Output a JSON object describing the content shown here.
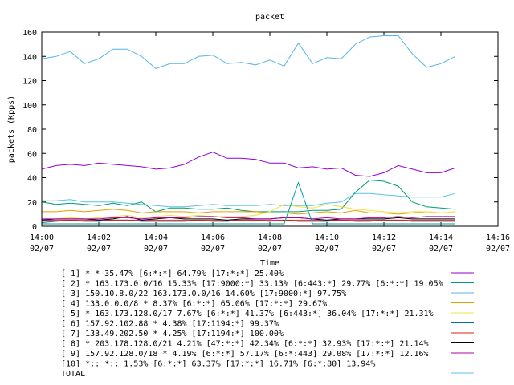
{
  "chart_data": {
    "type": "line",
    "title": "packet",
    "xlabel": "Time",
    "ylabel": "packets (Kpps)",
    "ylim": [
      0,
      160
    ],
    "yticks": [
      0,
      20,
      40,
      60,
      80,
      100,
      120,
      140,
      160
    ],
    "xlim_minutes": [
      0,
      16
    ],
    "xticks": [
      {
        "minute": 0,
        "time": "14:00",
        "date": "02/07"
      },
      {
        "minute": 2,
        "time": "14:02",
        "date": "02/07"
      },
      {
        "minute": 4,
        "time": "14:04",
        "date": "02/07"
      },
      {
        "minute": 6,
        "time": "14:06",
        "date": "02/07"
      },
      {
        "minute": 8,
        "time": "14:08",
        "date": "02/07"
      },
      {
        "minute": 10,
        "time": "14:10",
        "date": "02/07"
      },
      {
        "minute": 12,
        "time": "14:12",
        "date": "02/07"
      },
      {
        "minute": 14,
        "time": "14:14",
        "date": "02/07"
      },
      {
        "minute": 16,
        "time": "14:16",
        "date": "02/07"
      }
    ],
    "x_minutes": [
      0,
      0.5,
      1,
      1.5,
      2,
      2.5,
      3,
      3.5,
      4,
      4.5,
      5,
      5.5,
      6,
      6.5,
      7,
      7.5,
      8,
      8.5,
      9,
      9.5,
      10,
      10.5,
      11,
      11.5,
      12,
      12.5,
      13,
      13.5,
      14,
      14.5
    ],
    "series": [
      {
        "name": "[ 1] * * 35.47%  [6:*:*] 64.79% [17:*:*] 25.40%",
        "color": "#9400d3",
        "values": [
          47,
          50,
          51,
          50,
          52,
          51,
          50,
          49,
          47,
          48,
          51,
          57,
          61,
          56,
          56,
          55,
          52,
          52,
          48,
          49,
          47,
          48,
          42,
          41,
          44,
          50,
          47,
          44,
          44,
          48
        ]
      },
      {
        "name": "[ 2] * 163.173.0.0/16 15.33%  [17:9000:*] 33.13% [6:443:*] 29.77% [6:*:*] 19.05%",
        "color": "#009e73",
        "values": [
          20,
          18,
          19,
          18,
          17,
          19,
          17,
          20,
          12,
          15,
          15,
          14,
          14,
          15,
          13,
          12,
          12,
          12,
          12,
          13,
          13,
          14,
          28,
          38,
          37,
          33,
          20,
          16,
          15,
          14
        ]
      },
      {
        "name": "[ 3] 150.10.8.0/22 163.173.0.0/16 14.60%  [17:9000:*] 97.75%",
        "color": "#56b4e9",
        "values": [
          138,
          140,
          144,
          134,
          138,
          146,
          146,
          140,
          130,
          134,
          134,
          140,
          141,
          134,
          135,
          133,
          137,
          132,
          151,
          134,
          139,
          138,
          150,
          156,
          157,
          157,
          142,
          131,
          134,
          140
        ]
      },
      {
        "name": "[ 4] 133.0.0.0/8 * 8.37%  [6:*:*] 65.06% [17:*:*] 29.67%",
        "color": "#e69f00",
        "values": [
          12,
          12,
          13,
          12,
          13,
          14,
          13,
          11,
          12,
          12,
          12,
          11,
          12,
          12,
          12,
          12,
          11,
          11,
          10,
          11,
          12,
          11,
          13,
          11,
          11,
          10,
          11,
          12,
          11,
          11
        ]
      },
      {
        "name": "[ 5] * 163.173.128.0/17 7.67%  [6:*:*] 41.37% [6:443:*] 36.04% [17:*:*] 21.31%",
        "color": "#f0e442",
        "values": [
          5,
          6,
          7,
          6,
          7,
          8,
          9,
          7,
          8,
          9,
          8,
          9,
          8,
          8,
          8,
          9,
          12,
          18,
          16,
          15,
          18,
          16,
          14,
          13,
          12,
          11,
          12,
          12,
          11,
          12
        ]
      },
      {
        "name": "[ 6] 157.92.102.88 * 4.38%  [17:1194:*] 99.37%",
        "color": "#0072b2",
        "values": [
          3,
          4,
          5,
          4,
          4,
          5,
          5,
          4,
          4,
          4,
          4,
          5,
          4,
          4,
          5,
          5,
          4,
          5,
          4,
          4,
          4,
          5,
          4,
          4,
          5,
          5,
          4,
          4,
          4,
          4
        ]
      },
      {
        "name": "[ 7] 133.49.202.50 * 4.25%  [17:1194:*] 100.00%",
        "color": "#e51e10",
        "values": [
          5,
          5,
          5,
          5,
          5,
          5,
          5,
          5,
          5,
          5,
          5,
          5,
          5,
          5,
          5,
          5,
          5,
          5,
          5,
          5,
          5,
          5,
          5,
          5,
          5,
          5,
          5,
          5,
          5,
          5
        ]
      },
      {
        "name": "[ 8] * 203.178.128.0/21 4.21%  [47:*:*] 42.34% [6:*:*] 32.93% [17:*:*] 21.14%",
        "color": "#000000",
        "values": [
          5,
          6,
          6,
          6,
          5,
          6,
          8,
          5,
          6,
          7,
          6,
          6,
          6,
          5,
          6,
          6,
          6,
          7,
          7,
          6,
          5,
          6,
          6,
          6,
          6,
          7,
          6,
          6,
          6,
          6
        ]
      },
      {
        "name": "[ 9] 157.92.128.0/18 * 4.19%  [6:*:*] 57.17% [6:*:443] 29.08% [17:*:*] 12.16%",
        "color": "#b000b0",
        "values": [
          6,
          6,
          6,
          6,
          6,
          7,
          7,
          6,
          7,
          7,
          7,
          8,
          8,
          7,
          7,
          6,
          6,
          7,
          7,
          6,
          7,
          6,
          6,
          7,
          7,
          8,
          7,
          8,
          8,
          8
        ]
      },
      {
        "name": "[10] *:: *:: 1.53%  [6:*:*] 63.37% [17:*:*] 16.71% [6:*:80] 13.94%",
        "color": "#009e9e",
        "values": [
          2,
          2,
          2,
          2,
          2,
          2,
          2,
          2,
          2,
          2,
          2,
          2,
          2,
          2,
          2,
          2,
          2,
          2,
          36,
          2,
          2,
          2,
          2,
          2,
          2,
          2,
          2,
          2,
          2,
          2
        ]
      },
      {
        "name": "TOTAL",
        "color": "#5bc0eb",
        "values": [
          21,
          21,
          22,
          20,
          20,
          20,
          19,
          18,
          17,
          16,
          16,
          17,
          18,
          17,
          17,
          17,
          18,
          17,
          17,
          17,
          19,
          20,
          27,
          27,
          26,
          25,
          24,
          24,
          24,
          27
        ]
      }
    ]
  }
}
